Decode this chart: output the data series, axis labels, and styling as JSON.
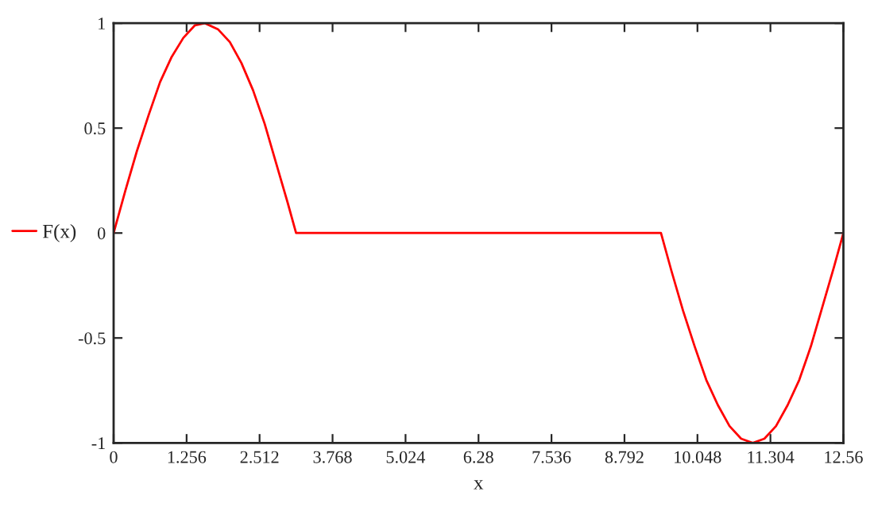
{
  "chart_data": {
    "type": "line",
    "xlabel": "x",
    "x": [
      0,
      0.2,
      0.4,
      0.6,
      0.8,
      1.0,
      1.2,
      1.4,
      1.57,
      1.8,
      2.0,
      2.2,
      2.4,
      2.6,
      2.8,
      3.0,
      3.14,
      4.0,
      6.0,
      8.0,
      9.42,
      9.6,
      9.8,
      10.0,
      10.2,
      10.4,
      10.6,
      10.8,
      11.0,
      11.2,
      11.4,
      11.6,
      11.8,
      12.0,
      12.2,
      12.4,
      12.56
    ],
    "series": [
      {
        "name": "F(x)",
        "color": "#ff0000",
        "values": [
          0,
          0.2,
          0.39,
          0.56,
          0.72,
          0.84,
          0.93,
          0.99,
          1.0,
          0.97,
          0.91,
          0.81,
          0.68,
          0.52,
          0.33,
          0.14,
          0,
          0,
          0,
          0,
          0,
          -0.18,
          -0.37,
          -0.54,
          -0.7,
          -0.82,
          -0.92,
          -0.98,
          -1.0,
          -0.98,
          -0.92,
          -0.82,
          -0.7,
          -0.54,
          -0.35,
          -0.16,
          0
        ]
      }
    ],
    "xlim": [
      0,
      12.56
    ],
    "xticks": [
      0,
      1.256,
      2.512,
      3.768,
      5.024,
      6.28,
      7.536,
      8.792,
      10.048,
      11.304,
      12.56
    ],
    "ylim": [
      -1,
      1
    ],
    "yticks": [
      -1,
      -0.5,
      0,
      0.5,
      1
    ],
    "legend": "left",
    "grid": false,
    "line_style": "solid",
    "marker": "none"
  }
}
